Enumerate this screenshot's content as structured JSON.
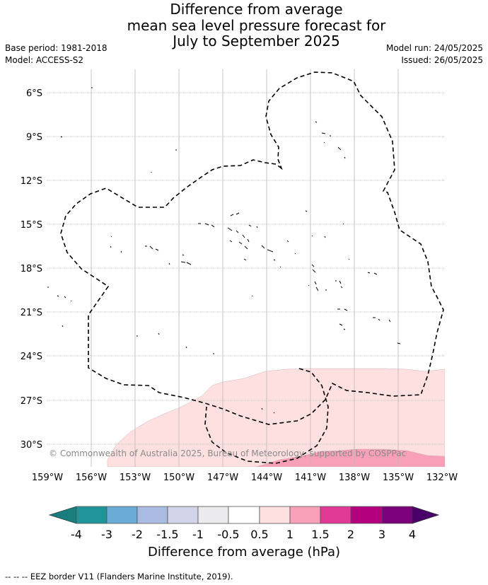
{
  "title": {
    "line1": "Difference from average",
    "line2": "mean sea level pressure forecast for",
    "line3": "July to September 2025"
  },
  "meta_left": {
    "base_period": "Base period: 1981-2018",
    "model": "Model: ACCESS-S2"
  },
  "meta_right": {
    "model_run": "Model run: 24/05/2025",
    "issued": "Issued: 26/05/2025"
  },
  "map": {
    "lat_labels": [
      "6°S",
      "9°S",
      "12°S",
      "15°S",
      "18°S",
      "21°S",
      "24°S",
      "27°S",
      "30°S"
    ],
    "lon_labels": [
      "159°W",
      "156°W",
      "153°W",
      "150°W",
      "147°W",
      "144°W",
      "141°W",
      "138°W",
      "135°W",
      "132°W"
    ],
    "copyright": "© Commonwealth of Australia 2025, Bureau of Meteorology, supported by COSPPac",
    "anomaly_fill_colors": {
      "light": "#fde0df",
      "medium": "#f8a0b8"
    }
  },
  "colorbar": {
    "title": "Difference from average (hPa)",
    "ticks": [
      "-4",
      "-3",
      "-2",
      "-1.5",
      "-1",
      "-0.5",
      "0.5",
      "1",
      "1.5",
      "2",
      "3",
      "4"
    ],
    "colors": [
      "#1a7d7e",
      "#1f9499",
      "#6aaad6",
      "#a9bbe0",
      "#d3d3eb",
      "#ebebed",
      "#ffffff",
      "#fde0df",
      "#f8a0b8",
      "#e03996",
      "#b2007f",
      "#7b007a",
      "#4a0068"
    ]
  },
  "footnote": "--  --  -- EEZ border V11 (Flanders Marine Institute, 2019)."
}
